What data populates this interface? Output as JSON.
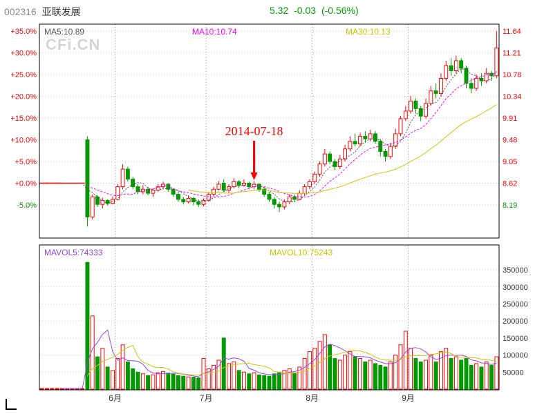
{
  "header": {
    "stock_code": "002316",
    "stock_name": "亚联发展",
    "price": "5.32",
    "change": "-0.03",
    "change_pct": "(-0.56%)",
    "price_color": "#00a000",
    "code_color": "#8a8a8a",
    "name_color": "#333333"
  },
  "watermark": "CFi.CN",
  "main_chart": {
    "ma_labels": [
      {
        "text": "MA5:10.89",
        "color": "#555555"
      },
      {
        "text": "MA10:10.74",
        "color": "#ff00ff"
      },
      {
        "text": "MA30:10.13",
        "color": "#c8c800"
      }
    ],
    "left_axis": [
      "+35.0%",
      "+30.0%",
      "+25.0%",
      "+20.0%",
      "+15.0%",
      "+10.0%",
      "+5.0%",
      "+0.0%",
      "-5.0%"
    ],
    "right_axis": [
      "11.64",
      "11.21",
      "10.78",
      "10.34",
      "9.91",
      "9.48",
      "9.05",
      "8.62",
      "8.19"
    ],
    "annotation": {
      "text": "2014-07-18"
    }
  },
  "volume_chart": {
    "mavol_labels": [
      {
        "text": "MAVOL5:74333",
        "color": "#9944ee"
      },
      {
        "text": "MAVOL10:75243",
        "color": "#c8c800"
      }
    ],
    "right_axis": [
      "350000",
      "300000",
      "250000",
      "200000",
      "150000",
      "100000",
      "50000"
    ]
  },
  "x_axis": {
    "months": [
      "6月",
      "7月",
      "8月",
      "9月"
    ]
  },
  "colors": {
    "up": "#ff0000",
    "down": "#009900",
    "grid": "#e6bcbc",
    "month_grid": "#999999",
    "border": "#000000",
    "ma5": "#555555",
    "ma10": "#ff00ff",
    "ma30": "#c8c800",
    "mavol5": "#9944ee",
    "mavol10": "#c8c800",
    "axis_red": "#ff0000",
    "axis_green": "#009900",
    "volume_axis_text": "#333333",
    "month_text": "#333333",
    "annotation": "#ff0000"
  },
  "chart_data": {
    "type": "candlestick+volume",
    "title": "002316 亚联发展 daily K-line May-Sep 2014",
    "baseline_price": 8.62,
    "percent_gridlines": [
      35,
      30,
      25,
      20,
      15,
      10,
      5,
      0,
      -5
    ],
    "price_axis": [
      11.64,
      11.21,
      10.78,
      10.34,
      9.91,
      9.48,
      9.05,
      8.62,
      8.19
    ],
    "volume_axis": [
      350000,
      300000,
      250000,
      200000,
      150000,
      100000,
      50000
    ],
    "grid": true,
    "legend_position": "top",
    "annotation": {
      "text": "2014-07-18",
      "candle_index": 42
    },
    "candle_fields": [
      "month",
      "open",
      "high",
      "low",
      "close",
      "volume"
    ],
    "candles": [
      [
        5,
        8.62,
        8.62,
        8.62,
        8.62,
        2000
      ],
      [
        5,
        8.62,
        8.62,
        8.62,
        8.62,
        2000
      ],
      [
        5,
        8.62,
        8.62,
        8.62,
        8.62,
        2000
      ],
      [
        5,
        8.62,
        8.62,
        8.62,
        8.62,
        2000
      ],
      [
        5,
        8.62,
        8.62,
        8.62,
        8.62,
        2000
      ],
      [
        5,
        8.62,
        8.62,
        8.62,
        8.62,
        2000
      ],
      [
        5,
        8.62,
        8.62,
        8.62,
        8.62,
        2000
      ],
      [
        5,
        8.62,
        8.62,
        8.62,
        8.62,
        2000
      ],
      [
        5,
        8.62,
        8.62,
        8.62,
        8.62,
        2000
      ],
      [
        5,
        9.48,
        9.55,
        7.76,
        7.95,
        372000
      ],
      [
        5,
        7.95,
        8.4,
        7.9,
        8.35,
        215000
      ],
      [
        5,
        8.35,
        8.38,
        8.15,
        8.2,
        95000
      ],
      [
        5,
        8.2,
        8.33,
        8.12,
        8.28,
        120000
      ],
      [
        5,
        8.28,
        8.3,
        8.18,
        8.22,
        65000
      ],
      [
        5,
        8.22,
        8.35,
        8.2,
        8.3,
        55000
      ],
      [
        6,
        8.3,
        8.6,
        8.28,
        8.55,
        90000
      ],
      [
        6,
        8.55,
        9.0,
        8.5,
        8.9,
        130000
      ],
      [
        6,
        8.9,
        8.95,
        8.65,
        8.7,
        80000
      ],
      [
        6,
        8.7,
        8.75,
        8.5,
        8.55,
        60000
      ],
      [
        6,
        8.55,
        8.6,
        8.4,
        8.45,
        50000
      ],
      [
        6,
        8.45,
        8.58,
        8.4,
        8.5,
        45000
      ],
      [
        6,
        8.5,
        8.55,
        8.38,
        8.42,
        40000
      ],
      [
        6,
        8.42,
        8.52,
        8.35,
        8.48,
        42000
      ],
      [
        6,
        8.48,
        8.6,
        8.45,
        8.55,
        48000
      ],
      [
        6,
        8.55,
        8.65,
        8.5,
        8.6,
        52000
      ],
      [
        6,
        8.6,
        8.62,
        8.45,
        8.5,
        47000
      ],
      [
        6,
        8.5,
        8.52,
        8.35,
        8.4,
        44000
      ],
      [
        6,
        8.4,
        8.45,
        8.25,
        8.3,
        40000
      ],
      [
        6,
        8.3,
        8.35,
        8.2,
        8.25,
        38000
      ],
      [
        6,
        8.25,
        8.38,
        8.22,
        8.32,
        36000
      ],
      [
        6,
        8.32,
        8.35,
        8.18,
        8.25,
        35000
      ],
      [
        6,
        8.25,
        8.3,
        8.15,
        8.2,
        33000
      ],
      [
        6,
        8.2,
        8.32,
        8.16,
        8.28,
        90000
      ],
      [
        7,
        8.28,
        8.45,
        8.25,
        8.4,
        60000
      ],
      [
        7,
        8.4,
        8.55,
        8.35,
        8.5,
        70000
      ],
      [
        7,
        8.5,
        8.66,
        8.48,
        8.6,
        85000
      ],
      [
        7,
        8.62,
        8.7,
        8.45,
        8.48,
        150000
      ],
      [
        7,
        8.48,
        8.6,
        8.42,
        8.55,
        75000
      ],
      [
        7,
        8.55,
        8.72,
        8.52,
        8.65,
        80000
      ],
      [
        7,
        8.65,
        8.68,
        8.52,
        8.58,
        55000
      ],
      [
        7,
        8.58,
        8.7,
        8.55,
        8.62,
        50000
      ],
      [
        7,
        8.62,
        8.65,
        8.5,
        8.55,
        45000
      ],
      [
        7,
        8.55,
        8.66,
        8.5,
        8.6,
        48000
      ],
      [
        7,
        8.6,
        8.62,
        8.45,
        8.5,
        42000
      ],
      [
        7,
        8.5,
        8.55,
        8.35,
        8.4,
        40000
      ],
      [
        7,
        8.4,
        8.45,
        8.25,
        8.3,
        38000
      ],
      [
        7,
        8.3,
        8.35,
        8.12,
        8.2,
        45000
      ],
      [
        7,
        8.2,
        8.25,
        8.05,
        8.15,
        50000
      ],
      [
        7,
        8.15,
        8.3,
        8.1,
        8.25,
        55000
      ],
      [
        7,
        8.25,
        8.4,
        8.2,
        8.35,
        60000
      ],
      [
        7,
        8.35,
        8.4,
        8.25,
        8.3,
        48000
      ],
      [
        7,
        8.3,
        8.48,
        8.28,
        8.42,
        65000
      ],
      [
        7,
        8.42,
        8.6,
        8.38,
        8.55,
        90000
      ],
      [
        7,
        8.55,
        8.7,
        8.5,
        8.65,
        110000
      ],
      [
        8,
        8.65,
        8.85,
        8.6,
        8.8,
        120000
      ],
      [
        8,
        8.8,
        9.05,
        8.75,
        9.0,
        140000
      ],
      [
        8,
        9.0,
        9.3,
        8.95,
        9.2,
        160000
      ],
      [
        8,
        9.2,
        9.25,
        9.0,
        9.05,
        130000
      ],
      [
        8,
        9.05,
        9.1,
        8.88,
        8.95,
        90000
      ],
      [
        8,
        8.95,
        9.18,
        8.9,
        9.1,
        85000
      ],
      [
        8,
        9.1,
        9.38,
        9.05,
        9.3,
        100000
      ],
      [
        8,
        9.3,
        9.55,
        9.25,
        9.45,
        110000
      ],
      [
        8,
        9.45,
        9.6,
        9.35,
        9.4,
        95000
      ],
      [
        8,
        9.4,
        9.62,
        9.35,
        9.55,
        90000
      ],
      [
        8,
        9.55,
        9.65,
        9.42,
        9.5,
        80000
      ],
      [
        8,
        9.5,
        9.68,
        9.45,
        9.6,
        85000
      ],
      [
        8,
        9.6,
        9.65,
        9.4,
        9.45,
        75000
      ],
      [
        8,
        9.45,
        9.5,
        9.15,
        9.25,
        70000
      ],
      [
        8,
        9.25,
        9.3,
        9.05,
        9.15,
        65000
      ],
      [
        8,
        9.15,
        9.42,
        9.1,
        9.35,
        80000
      ],
      [
        8,
        9.35,
        9.7,
        9.3,
        9.6,
        100000
      ],
      [
        8,
        9.6,
        9.95,
        9.55,
        9.9,
        130000
      ],
      [
        8,
        9.9,
        10.15,
        9.85,
        10.05,
        170000
      ],
      [
        9,
        10.05,
        10.35,
        10.0,
        10.25,
        120000
      ],
      [
        9,
        10.25,
        10.3,
        10.0,
        10.1,
        90000
      ],
      [
        9,
        10.1,
        10.15,
        9.85,
        9.95,
        80000
      ],
      [
        9,
        9.95,
        10.3,
        9.9,
        10.2,
        85000
      ],
      [
        9,
        10.2,
        10.55,
        10.15,
        10.45,
        100000
      ],
      [
        9,
        10.45,
        10.6,
        10.3,
        10.4,
        80000
      ],
      [
        9,
        10.4,
        10.8,
        10.35,
        10.7,
        110000
      ],
      [
        9,
        10.7,
        11.05,
        10.65,
        10.95,
        120000
      ],
      [
        9,
        10.95,
        11.1,
        10.75,
        10.85,
        90000
      ],
      [
        9,
        10.85,
        11.15,
        10.8,
        11.05,
        95000
      ],
      [
        9,
        11.05,
        11.1,
        10.8,
        10.9,
        85000
      ],
      [
        9,
        10.9,
        10.95,
        10.5,
        10.6,
        90000
      ],
      [
        9,
        10.6,
        10.7,
        10.4,
        10.5,
        70000
      ],
      [
        9,
        10.5,
        10.78,
        10.45,
        10.7,
        75000
      ],
      [
        9,
        10.7,
        10.8,
        10.55,
        10.65,
        65000
      ],
      [
        9,
        10.65,
        10.9,
        10.6,
        10.8,
        80000
      ],
      [
        9,
        10.8,
        10.85,
        10.65,
        10.75,
        70000
      ],
      [
        9,
        10.75,
        11.64,
        10.7,
        11.3,
        95000
      ]
    ]
  }
}
